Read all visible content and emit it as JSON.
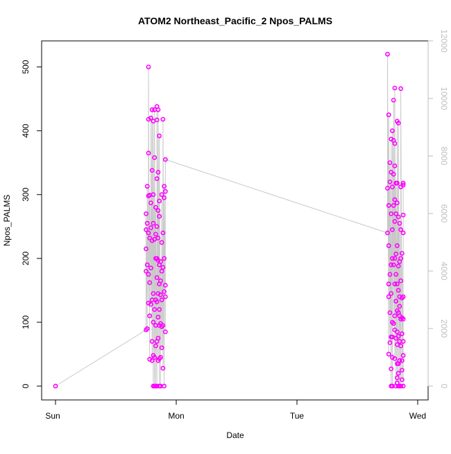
{
  "chart_data": {
    "type": "scatter",
    "title": "ATOM2 Northeast_Pacific_2 Npos_PALMS",
    "xlabel": "Date",
    "ylabel": "Npos_PALMS",
    "x_ticks": [
      "Sun",
      "Mon",
      "Tue",
      "Wed"
    ],
    "y_ticks": [
      "0",
      "100",
      "200",
      "300",
      "400",
      "500"
    ],
    "y_right_ticks": [
      "0",
      "2000",
      "4000",
      "6000",
      "8000",
      "10000",
      "12000"
    ],
    "ylim": [
      0,
      520
    ],
    "y_right_lim": [
      0,
      12000
    ],
    "colors": {
      "points": "#ff00ff",
      "line": "#bebebe",
      "axis": "#000000",
      "right_axis": "#bebebe"
    },
    "series": [
      {
        "type": "scatter",
        "points": [
          [
            0.0,
            0
          ],
          [
            0.75,
            88
          ],
          [
            0.75,
            180
          ],
          [
            0.75,
            215
          ],
          [
            0.75,
            245
          ],
          [
            0.75,
            270
          ],
          [
            0.76,
            90
          ],
          [
            0.76,
            190
          ],
          [
            0.76,
            255
          ],
          [
            0.76,
            313
          ],
          [
            0.77,
            130
          ],
          [
            0.77,
            175
          ],
          [
            0.77,
            240
          ],
          [
            0.77,
            298
          ],
          [
            0.77,
            365
          ],
          [
            0.77,
            418
          ],
          [
            0.77,
            500
          ],
          [
            0.78,
            42
          ],
          [
            0.78,
            110
          ],
          [
            0.78,
            162
          ],
          [
            0.78,
            232
          ],
          [
            0.78,
            299
          ],
          [
            0.79,
            128
          ],
          [
            0.79,
            185
          ],
          [
            0.79,
            248
          ],
          [
            0.79,
            287
          ],
          [
            0.79,
            420
          ],
          [
            0.8,
            40
          ],
          [
            0.8,
            70
          ],
          [
            0.8,
            135
          ],
          [
            0.8,
            228
          ],
          [
            0.8,
            338
          ],
          [
            0.8,
            433
          ],
          [
            0.81,
            0
          ],
          [
            0.81,
            48
          ],
          [
            0.81,
            100
          ],
          [
            0.81,
            145
          ],
          [
            0.81,
            255
          ],
          [
            0.81,
            300
          ],
          [
            0.81,
            415
          ],
          [
            0.82,
            0
          ],
          [
            0.82,
            45
          ],
          [
            0.82,
            120
          ],
          [
            0.82,
            230
          ],
          [
            0.82,
            358
          ],
          [
            0.82,
            433
          ],
          [
            0.83,
            0
          ],
          [
            0.83,
            63
          ],
          [
            0.83,
            95
          ],
          [
            0.83,
            135
          ],
          [
            0.83,
            200
          ],
          [
            0.83,
            238
          ],
          [
            0.83,
            280
          ],
          [
            0.84,
            0
          ],
          [
            0.84,
            70
          ],
          [
            0.84,
            132
          ],
          [
            0.84,
            170
          ],
          [
            0.84,
            200
          ],
          [
            0.84,
            250
          ],
          [
            0.84,
            325
          ],
          [
            0.84,
            417
          ],
          [
            0.84,
            438
          ],
          [
            0.85,
            40
          ],
          [
            0.85,
            75
          ],
          [
            0.85,
            108
          ],
          [
            0.85,
            145
          ],
          [
            0.85,
            197
          ],
          [
            0.85,
            232
          ],
          [
            0.85,
            275
          ],
          [
            0.85,
            335
          ],
          [
            0.85,
            433
          ],
          [
            0.86,
            0
          ],
          [
            0.86,
            43
          ],
          [
            0.86,
            95
          ],
          [
            0.86,
            120
          ],
          [
            0.86,
            160
          ],
          [
            0.86,
            190
          ],
          [
            0.86,
            266
          ],
          [
            0.86,
            290
          ],
          [
            0.86,
            392
          ],
          [
            0.87,
            0
          ],
          [
            0.87,
            45
          ],
          [
            0.87,
            98
          ],
          [
            0.87,
            143
          ],
          [
            0.87,
            165
          ],
          [
            0.87,
            195
          ],
          [
            0.88,
            60
          ],
          [
            0.88,
            93
          ],
          [
            0.88,
            135
          ],
          [
            0.88,
            180
          ],
          [
            0.88,
            225
          ],
          [
            0.88,
            300
          ],
          [
            0.89,
            28
          ],
          [
            0.89,
            95
          ],
          [
            0.89,
            186
          ],
          [
            0.89,
            240
          ],
          [
            0.89,
            418
          ],
          [
            0.9,
            0
          ],
          [
            0.9,
            148
          ],
          [
            0.9,
            200
          ],
          [
            0.9,
            313
          ],
          [
            0.9,
            295
          ],
          [
            0.91,
            85
          ],
          [
            0.91,
            140
          ],
          [
            0.91,
            158
          ],
          [
            0.91,
            305
          ],
          [
            0.91,
            355
          ],
          [
            2.75,
            520
          ],
          [
            2.75,
            240
          ],
          [
            2.75,
            310
          ],
          [
            2.76,
            50
          ],
          [
            2.76,
            140
          ],
          [
            2.76,
            160
          ],
          [
            2.76,
            220
          ],
          [
            2.76,
            283
          ],
          [
            2.76,
            425
          ],
          [
            2.77,
            68
          ],
          [
            2.77,
            115
          ],
          [
            2.77,
            175
          ],
          [
            2.77,
            320
          ],
          [
            2.77,
            350
          ],
          [
            2.78,
            0
          ],
          [
            2.78,
            27
          ],
          [
            2.78,
            77
          ],
          [
            2.78,
            145
          ],
          [
            2.78,
            190
          ],
          [
            2.78,
            270
          ],
          [
            2.78,
            335
          ],
          [
            2.78,
            387
          ],
          [
            2.79,
            0
          ],
          [
            2.79,
            45
          ],
          [
            2.79,
            77
          ],
          [
            2.79,
            100
          ],
          [
            2.79,
            200
          ],
          [
            2.79,
            245
          ],
          [
            2.79,
            312
          ],
          [
            2.79,
            400
          ],
          [
            2.8,
            98
          ],
          [
            2.8,
            190
          ],
          [
            2.8,
            283
          ],
          [
            2.8,
            332
          ],
          [
            2.8,
            385
          ],
          [
            2.8,
            448
          ],
          [
            2.81,
            43
          ],
          [
            2.81,
            88
          ],
          [
            2.81,
            110
          ],
          [
            2.81,
            160
          ],
          [
            2.81,
            200
          ],
          [
            2.81,
            258
          ],
          [
            2.81,
            292
          ],
          [
            2.81,
            345
          ],
          [
            2.81,
            380
          ],
          [
            2.81,
            467
          ],
          [
            2.82,
            0
          ],
          [
            2.82,
            75
          ],
          [
            2.82,
            133
          ],
          [
            2.82,
            175
          ],
          [
            2.82,
            207
          ],
          [
            2.82,
            270
          ],
          [
            2.82,
            318
          ],
          [
            2.83,
            5
          ],
          [
            2.83,
            13
          ],
          [
            2.83,
            35
          ],
          [
            2.83,
            65
          ],
          [
            2.83,
            85
          ],
          [
            2.83,
            118
          ],
          [
            2.83,
            160
          ],
          [
            2.83,
            220
          ],
          [
            2.83,
            287
          ],
          [
            2.83,
            318
          ],
          [
            2.83,
            415
          ],
          [
            2.84,
            0
          ],
          [
            2.84,
            20
          ],
          [
            2.84,
            35
          ],
          [
            2.84,
            78
          ],
          [
            2.84,
            115
          ],
          [
            2.84,
            150
          ],
          [
            2.84,
            188
          ],
          [
            2.84,
            265
          ],
          [
            2.84,
            412
          ],
          [
            2.85,
            0
          ],
          [
            2.85,
            40
          ],
          [
            2.85,
            70
          ],
          [
            2.85,
            110
          ],
          [
            2.85,
            125
          ],
          [
            2.85,
            140
          ],
          [
            2.85,
            195
          ],
          [
            2.85,
            255
          ],
          [
            2.86,
            0
          ],
          [
            2.86,
            63
          ],
          [
            2.86,
            105
          ],
          [
            2.86,
            165
          ],
          [
            2.86,
            200
          ],
          [
            2.86,
            245
          ],
          [
            2.86,
            312
          ],
          [
            2.86,
            466
          ],
          [
            2.87,
            10
          ],
          [
            2.87,
            25
          ],
          [
            2.87,
            40
          ],
          [
            2.87,
            82
          ],
          [
            2.87,
            107
          ],
          [
            2.87,
            138
          ],
          [
            2.87,
            208
          ],
          [
            2.88,
            0
          ],
          [
            2.88,
            48
          ],
          [
            2.88,
            70
          ],
          [
            2.88,
            105
          ],
          [
            2.88,
            140
          ],
          [
            2.88,
            240
          ],
          [
            2.88,
            268
          ],
          [
            2.88,
            315
          ],
          [
            2.88,
            318
          ]
        ]
      }
    ]
  }
}
